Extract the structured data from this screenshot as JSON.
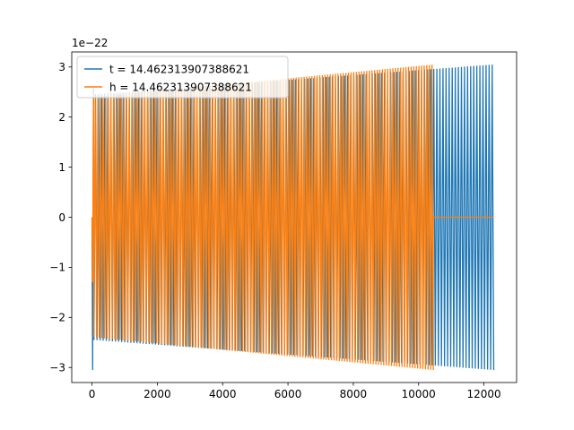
{
  "chart_data": {
    "type": "line",
    "title": "",
    "xlabel": "",
    "ylabel": "",
    "xlim": [
      -620,
      13000
    ],
    "ylim": [
      -3.3e-22,
      3.3e-22
    ],
    "y_offset_text": "1e−22",
    "xticks": [
      0,
      2000,
      4000,
      6000,
      8000,
      10000,
      12000
    ],
    "xtick_labels": [
      "0",
      "2000",
      "4000",
      "6000",
      "8000",
      "10000",
      "12000"
    ],
    "yticks": [
      -3,
      -2,
      -1,
      0,
      1,
      2,
      3
    ],
    "ytick_labels": [
      "−3",
      "−2",
      "−1",
      "0",
      "1",
      "2",
      "3"
    ],
    "ytick_scale": 1e-22,
    "grid": false,
    "legend_position": "upper-left",
    "series": [
      {
        "name": "t = 14.462313907388621",
        "color": "#1f77b4",
        "kind": "oscillation",
        "x_start": 0,
        "x_end": 12300,
        "initial_min": -3.05e-22,
        "initial_max": 2.6e-22,
        "body_amplitude_start": 2.45e-22,
        "body_amplitude_end": 3.05e-22,
        "tail_value_after_end": null
      },
      {
        "name": "h = 14.462313907388621",
        "color": "#ff7f0e",
        "kind": "oscillation",
        "x_start": 0,
        "x_end": 10450,
        "initial_min": -1.3e-22,
        "initial_max": 2.45e-22,
        "body_amplitude_start": 2.4e-22,
        "body_amplitude_end": 3.05e-22,
        "tail_value_after_end": 0,
        "tail_x_end": 12300
      }
    ]
  }
}
